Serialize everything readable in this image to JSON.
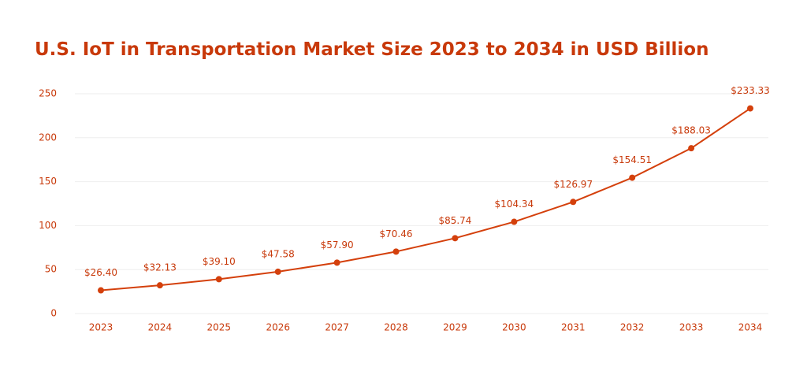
{
  "chart_data": {
    "type": "line",
    "title": "U.S. IoT in Transportation Market Size 2023 to 2034 in USD Billion",
    "categories": [
      "2023",
      "2024",
      "2025",
      "2026",
      "2027",
      "2028",
      "2029",
      "2030",
      "2031",
      "2032",
      "2033",
      "2034"
    ],
    "values": [
      26.4,
      32.13,
      39.1,
      47.58,
      57.9,
      70.46,
      85.74,
      104.34,
      126.97,
      154.51,
      188.03,
      233.33
    ],
    "value_labels": [
      "$26.40",
      "$32.13",
      "$39.10",
      "$47.58",
      "$57.90",
      "$70.46",
      "$85.74",
      "$104.34",
      "$126.97",
      "$154.51",
      "$188.03",
      "$233.33"
    ],
    "color": "#d4400c",
    "ylim": [
      0,
      250
    ],
    "yticks": [
      0,
      50,
      100,
      150,
      200,
      250
    ],
    "grid": true
  }
}
